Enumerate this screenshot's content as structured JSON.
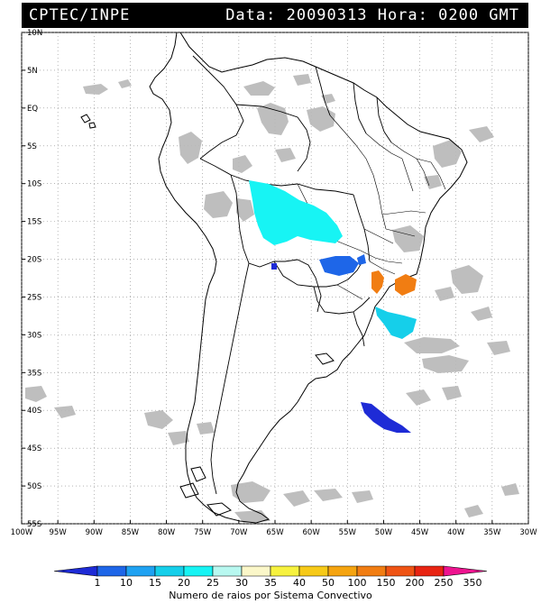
{
  "header": {
    "left": "CPTEC/INPE",
    "right": "Data: 20090313 Hora: 0200 GMT"
  },
  "map": {
    "lat_labels": [
      "10N",
      "5N",
      "EQ",
      "5S",
      "10S",
      "15S",
      "20S",
      "25S",
      "30S",
      "35S",
      "40S",
      "45S",
      "50S",
      "55S"
    ],
    "lon_labels": [
      "100W",
      "95W",
      "90W",
      "85W",
      "80W",
      "75W",
      "70W",
      "65W",
      "60W",
      "55W",
      "50W",
      "45W",
      "40W",
      "35W",
      "30W"
    ],
    "lat_range": [
      10,
      -55
    ],
    "lon_range": [
      -100,
      -30
    ],
    "grid": "dotted"
  },
  "colorbar": {
    "labels": [
      "1",
      "10",
      "15",
      "20",
      "25",
      "30",
      "35",
      "40",
      "50",
      "100",
      "150",
      "200",
      "250",
      "350"
    ],
    "colors": [
      "#1e2bd6",
      "#1e66e8",
      "#1fa2f2",
      "#15cfea",
      "#17f4f4",
      "#b8f8f0",
      "#fbf7c9",
      "#f7f23f",
      "#f7ca18",
      "#f5a410",
      "#f17d12",
      "#ef5414",
      "#e82412",
      "#ee1490"
    ],
    "title": "Numero de raios por Sistema Convectivo"
  }
}
